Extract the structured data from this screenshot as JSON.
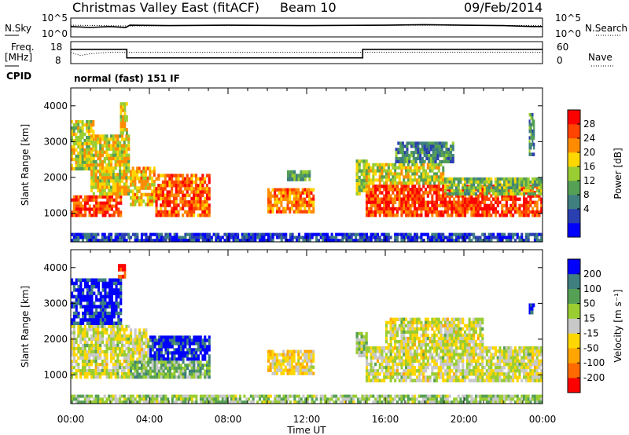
{
  "header": {
    "station": "Christmas Valley East (fitACF)",
    "beam": "Beam 10",
    "date": "09/Feb/2014"
  },
  "noise_panel": {
    "left_label": "N.Sky",
    "right_label": "N.Search",
    "left_ticks": [
      "10^5",
      "10^0"
    ],
    "right_ticks": [
      "10^5",
      "10^0"
    ]
  },
  "freq_panel": {
    "left_label_1": "Freq.",
    "left_label_2": "[MHz]",
    "right_label": "Nave",
    "left_ticks": [
      "18",
      "8"
    ],
    "right_ticks": [
      "60",
      "0"
    ]
  },
  "cpid": {
    "label": "CPID",
    "mode": "normal (fast) 151 IF"
  },
  "chart_data": [
    {
      "type": "line",
      "name": "noise",
      "x_unit": "hours UT",
      "xlim": [
        0,
        24
      ],
      "series": [
        {
          "name": "N.Sky",
          "style": "solid",
          "x": [
            0,
            1,
            2,
            2.8,
            3,
            5,
            8,
            12,
            16,
            18,
            20,
            22,
            23.5,
            24
          ],
          "y": [
            0.55,
            0.5,
            0.55,
            0.5,
            0.62,
            0.6,
            0.62,
            0.6,
            0.62,
            0.65,
            0.62,
            0.6,
            0.55,
            0.55
          ]
        },
        {
          "name": "N.Search",
          "style": "dotted",
          "x": [
            0,
            3,
            6,
            12,
            18,
            24
          ],
          "y": [
            0.62,
            0.58,
            0.6,
            0.6,
            0.62,
            0.6
          ]
        }
      ]
    },
    {
      "type": "line",
      "name": "frequency-nave",
      "x_unit": "hours UT",
      "xlim": [
        0,
        24
      ],
      "series": [
        {
          "name": "Freq.",
          "style": "solid",
          "unit": "MHz",
          "ylim": [
            8,
            18
          ],
          "x": [
            0,
            2.85,
            2.85,
            14.85,
            14.85,
            24
          ],
          "y": [
            14.5,
            14.5,
            10.6,
            10.6,
            14.5,
            14.5
          ]
        },
        {
          "name": "Nave",
          "style": "dotted",
          "ylim": [
            0,
            60
          ],
          "x": [
            0,
            0.5,
            1,
            2,
            2.85,
            3,
            10,
            14.85,
            15,
            20,
            24
          ],
          "y": [
            30,
            22,
            27,
            31,
            31,
            31,
            31,
            31,
            31,
            31,
            31
          ]
        }
      ]
    },
    {
      "type": "heatmap",
      "name": "power",
      "x_label": "",
      "y_label": "Slant Range [km]",
      "ylim": [
        200,
        4500
      ],
      "xlim": [
        0,
        24
      ],
      "y_ticks": [
        1000,
        2000,
        3000,
        4000
      ],
      "colorbar": {
        "label": "Power [dB]",
        "ticks": [
          "28",
          "24",
          "20",
          "16",
          "12",
          "8",
          "4"
        ],
        "colors": [
          "#0000ff",
          "#2a3fb0",
          "#3f7f7f",
          "#55a055",
          "#9acd32",
          "#ffd700",
          "#ff8c00",
          "#ff4500",
          "#ff0000"
        ]
      },
      "regions": [
        {
          "t0": 0.0,
          "t1": 2.6,
          "r0": 900,
          "r1": 1500,
          "level": 0.85
        },
        {
          "t0": 0.0,
          "t1": 1.2,
          "r0": 2200,
          "r1": 3600,
          "level": 0.55
        },
        {
          "t0": 1.0,
          "t1": 3.0,
          "r0": 1500,
          "r1": 3200,
          "level": 0.6
        },
        {
          "t0": 2.5,
          "t1": 2.9,
          "r0": 3200,
          "r1": 4100,
          "level": 0.6
        },
        {
          "t0": 3.0,
          "t1": 4.3,
          "r0": 1200,
          "r1": 2300,
          "level": 0.65
        },
        {
          "t0": 4.3,
          "t1": 7.1,
          "r0": 900,
          "r1": 2100,
          "level": 0.8
        },
        {
          "t0": 10.0,
          "t1": 12.4,
          "r0": 1000,
          "r1": 1700,
          "level": 0.75
        },
        {
          "t0": 11.0,
          "t1": 12.2,
          "r0": 1900,
          "r1": 2200,
          "level": 0.4
        },
        {
          "t0": 14.5,
          "t1": 15.1,
          "r0": 1500,
          "r1": 2500,
          "level": 0.5
        },
        {
          "t0": 15.0,
          "t1": 24.0,
          "r0": 900,
          "r1": 1800,
          "level": 0.85
        },
        {
          "t0": 15.0,
          "t1": 19.0,
          "r0": 1800,
          "r1": 2400,
          "level": 0.55
        },
        {
          "t0": 16.5,
          "t1": 19.5,
          "r0": 2400,
          "r1": 3000,
          "level": 0.3
        },
        {
          "t0": 19.0,
          "t1": 24.0,
          "r0": 1500,
          "r1": 2000,
          "level": 0.45
        },
        {
          "t0": 23.3,
          "t1": 23.6,
          "r0": 2600,
          "r1": 3800,
          "level": 0.35
        },
        {
          "t0": 0.0,
          "t1": 24.0,
          "r0": 200,
          "r1": 450,
          "level": 0.15
        }
      ]
    },
    {
      "type": "heatmap",
      "name": "velocity",
      "x_label": "Time UT",
      "y_label": "Slant Range [km]",
      "ylim": [
        200,
        4500
      ],
      "xlim": [
        0,
        24
      ],
      "y_ticks": [
        1000,
        2000,
        3000,
        4000
      ],
      "x_ticks": [
        "00:00",
        "04:00",
        "08:00",
        "12:00",
        "16:00",
        "20:00",
        "00:00"
      ],
      "colorbar": {
        "label": "Velocity [m s⁻¹]",
        "ticks": [
          "200",
          "100",
          "50",
          "15",
          "-15",
          "-50",
          "-100",
          "-200"
        ],
        "colors": [
          "#ff0000",
          "#ff6a00",
          "#ffa500",
          "#ffd700",
          "#c8c8c8",
          "#9acd32",
          "#55a055",
          "#3f7f7f",
          "#0000ff"
        ]
      },
      "regions": [
        {
          "t0": 0.0,
          "t1": 3.0,
          "r0": 900,
          "r1": 2400,
          "level": 0.5
        },
        {
          "t0": 0.0,
          "t1": 2.6,
          "r0": 2400,
          "r1": 3700,
          "level": 0.95
        },
        {
          "t0": 2.4,
          "t1": 2.8,
          "r0": 3700,
          "r1": 4100,
          "level": 0.05
        },
        {
          "t0": 3.0,
          "t1": 4.0,
          "r0": 1300,
          "r1": 2300,
          "level": 0.5
        },
        {
          "t0": 4.0,
          "t1": 7.1,
          "r0": 1400,
          "r1": 2100,
          "level": 0.95
        },
        {
          "t0": 3.0,
          "t1": 7.1,
          "r0": 900,
          "r1": 1400,
          "level": 0.65
        },
        {
          "t0": 10.0,
          "t1": 12.4,
          "r0": 1000,
          "r1": 1700,
          "level": 0.4
        },
        {
          "t0": 14.5,
          "t1": 15.1,
          "r0": 1500,
          "r1": 2200,
          "level": 0.6
        },
        {
          "t0": 15.0,
          "t1": 24.0,
          "r0": 800,
          "r1": 1800,
          "level": 0.5
        },
        {
          "t0": 16.0,
          "t1": 21.0,
          "r0": 1800,
          "r1": 2600,
          "level": 0.5
        },
        {
          "t0": 23.3,
          "t1": 23.6,
          "r0": 2700,
          "r1": 3000,
          "level": 0.95
        },
        {
          "t0": 0.0,
          "t1": 24.0,
          "r0": 200,
          "r1": 450,
          "level": 0.6
        }
      ]
    }
  ]
}
